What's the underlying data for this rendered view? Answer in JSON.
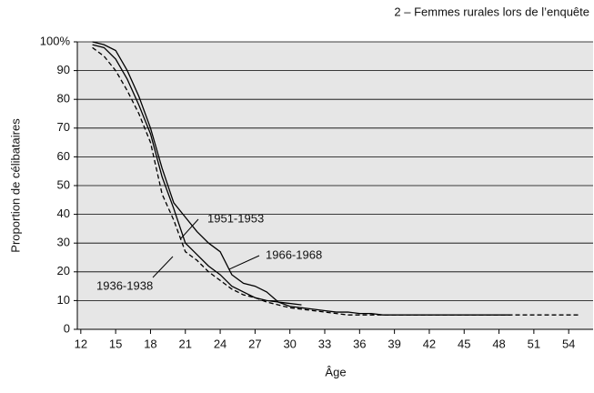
{
  "chart_data": {
    "type": "line",
    "title": "2 – Femmes rurales lors de l’enquête",
    "xlabel": "Âge",
    "ylabel": "Proportion de célibataires",
    "xlim": [
      11.7,
      56.1
    ],
    "ylim": [
      0,
      100
    ],
    "xticks": [
      12,
      15,
      18,
      21,
      24,
      27,
      30,
      33,
      36,
      39,
      42,
      45,
      48,
      51,
      54
    ],
    "yticks": [
      0,
      10,
      20,
      30,
      40,
      50,
      60,
      70,
      80,
      90,
      {
        "value": 100,
        "label": "100%"
      }
    ],
    "grid": true,
    "series": [
      {
        "name": "1966-1968",
        "color": "#000000",
        "dash": "none",
        "x": [
          13,
          14,
          15,
          16,
          17,
          18,
          19,
          20,
          21,
          22,
          23,
          24,
          25,
          26,
          27,
          28,
          29,
          30,
          31
        ],
        "values": [
          100,
          99,
          97,
          90,
          81,
          70,
          56,
          44,
          39,
          34,
          30,
          27,
          19,
          16,
          15,
          13,
          9.5,
          9,
          8.5
        ]
      },
      {
        "name": "1951-1953",
        "color": "#000000",
        "dash": "none",
        "x": [
          13,
          14,
          15,
          16,
          17,
          18,
          19,
          20,
          21,
          22,
          23,
          24,
          25,
          26,
          27,
          28,
          29,
          30,
          31,
          32,
          33,
          34,
          35,
          36,
          37,
          38,
          39,
          40,
          41,
          42,
          43,
          44,
          45,
          46,
          47,
          48,
          49
        ],
        "values": [
          99,
          98,
          94,
          87,
          78,
          68,
          53,
          42,
          30,
          26,
          22,
          19,
          15,
          13,
          11,
          10,
          9.5,
          8,
          7.5,
          7,
          6.5,
          6,
          6,
          5.5,
          5.5,
          5,
          5,
          5,
          5,
          5,
          5,
          5,
          5,
          5,
          5,
          5,
          5
        ]
      },
      {
        "name": "1936-1938",
        "color": "#000000",
        "dash": "5,3",
        "x": [
          13,
          14,
          15,
          16,
          17,
          18,
          19,
          20,
          21,
          22,
          23,
          24,
          25,
          26,
          27,
          28,
          29,
          30,
          31,
          32,
          33,
          34,
          35,
          36,
          37,
          38,
          39,
          40,
          41,
          42,
          43,
          44,
          45,
          46,
          47,
          48,
          49,
          50,
          51,
          52,
          53,
          54,
          55
        ],
        "values": [
          98,
          95,
          90,
          83,
          75,
          65,
          47,
          38,
          27,
          24,
          20,
          17,
          14,
          12,
          11,
          9.5,
          8.5,
          7.5,
          7,
          6.5,
          6,
          5.5,
          5,
          5,
          5,
          5,
          5,
          5,
          5,
          5,
          5,
          5,
          5,
          5,
          5,
          5,
          5,
          5,
          5,
          5,
          5,
          5,
          5
        ]
      }
    ]
  }
}
